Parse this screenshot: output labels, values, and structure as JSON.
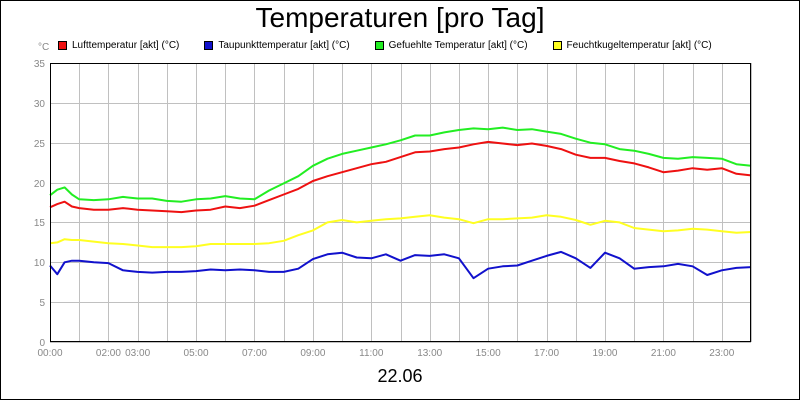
{
  "chart_data": {
    "type": "line",
    "title": "Temperaturen [pro Tag]",
    "ylabel": "°C",
    "xlabel": "22.06",
    "ylim": [
      0,
      35
    ],
    "yticks": [
      0,
      5,
      10,
      15,
      20,
      25,
      30,
      35
    ],
    "xlim": [
      0,
      24
    ],
    "xticks": [
      {
        "h": 0,
        "label": "00:00"
      },
      {
        "h": 2,
        "label": "02:00"
      },
      {
        "h": 3,
        "label": "03:00"
      },
      {
        "h": 5,
        "label": "05:00"
      },
      {
        "h": 7,
        "label": "07:00"
      },
      {
        "h": 9,
        "label": "09:00"
      },
      {
        "h": 11,
        "label": "11:00"
      },
      {
        "h": 13,
        "label": "13:00"
      },
      {
        "h": 15,
        "label": "15:00"
      },
      {
        "h": 17,
        "label": "17:00"
      },
      {
        "h": 19,
        "label": "19:00"
      },
      {
        "h": 21,
        "label": "21:00"
      },
      {
        "h": 23,
        "label": "23:00"
      }
    ],
    "grid": true,
    "legend_position": "top",
    "x": [
      0,
      0.25,
      0.5,
      0.75,
      1,
      1.5,
      2,
      2.5,
      3,
      3.5,
      4,
      4.5,
      5,
      5.5,
      6,
      6.5,
      7,
      7.5,
      8,
      8.5,
      9,
      9.5,
      10,
      10.5,
      11,
      11.5,
      12,
      12.5,
      13,
      13.5,
      14,
      14.5,
      15,
      15.5,
      16,
      16.5,
      17,
      17.5,
      18,
      18.5,
      19,
      19.5,
      20,
      20.5,
      21,
      21.5,
      22,
      22.5,
      23,
      23.5,
      24
    ],
    "series": [
      {
        "name": "Lufttemperatur [akt] (°C)",
        "color": "#ee1111",
        "values": [
          16.9,
          17.3,
          17.6,
          17.0,
          16.8,
          16.6,
          16.6,
          16.8,
          16.6,
          16.5,
          16.4,
          16.3,
          16.5,
          16.6,
          17.0,
          16.8,
          17.1,
          17.8,
          18.5,
          19.2,
          20.2,
          20.8,
          21.3,
          21.8,
          22.3,
          22.6,
          23.2,
          23.8,
          23.9,
          24.2,
          24.4,
          24.8,
          25.1,
          24.9,
          24.7,
          24.9,
          24.6,
          24.2,
          23.5,
          23.1,
          23.1,
          22.7,
          22.4,
          21.9,
          21.3,
          21.5,
          21.8,
          21.6,
          21.8,
          21.1,
          20.9
        ]
      },
      {
        "name": "Taupunkttemperatur [akt] (°C)",
        "color": "#1111cc",
        "values": [
          9.6,
          8.5,
          10.0,
          10.2,
          10.2,
          10.0,
          9.9,
          9.0,
          8.8,
          8.7,
          8.8,
          8.8,
          8.9,
          9.1,
          9.0,
          9.1,
          9.0,
          8.8,
          8.8,
          9.2,
          10.4,
          11.0,
          11.2,
          10.6,
          10.5,
          11.0,
          10.2,
          10.9,
          10.8,
          11.0,
          10.5,
          8.0,
          9.2,
          9.5,
          9.6,
          10.2,
          10.8,
          11.3,
          10.5,
          9.3,
          11.2,
          10.5,
          9.2,
          9.4,
          9.5,
          9.8,
          9.5,
          8.4,
          9.0,
          9.3,
          9.4
        ]
      },
      {
        "name": "Gefuehlte Temperatur [akt] (°C)",
        "color": "#22ee22",
        "values": [
          18.4,
          19.1,
          19.4,
          18.5,
          17.9,
          17.8,
          17.9,
          18.2,
          18.0,
          18.0,
          17.7,
          17.6,
          17.9,
          18.0,
          18.3,
          18.0,
          17.9,
          19.0,
          19.9,
          20.8,
          22.1,
          23.0,
          23.6,
          24.0,
          24.4,
          24.8,
          25.3,
          25.9,
          25.9,
          26.3,
          26.6,
          26.8,
          26.7,
          26.9,
          26.6,
          26.7,
          26.4,
          26.1,
          25.5,
          25.0,
          24.8,
          24.2,
          24.0,
          23.6,
          23.1,
          23.0,
          23.2,
          23.1,
          23.0,
          22.3,
          22.1
        ]
      },
      {
        "name": "Feuchtkugeltemperatur [akt] (°C)",
        "color": "#ffff22",
        "values": [
          12.4,
          12.5,
          12.9,
          12.8,
          12.8,
          12.6,
          12.4,
          12.3,
          12.1,
          11.9,
          11.9,
          11.9,
          12.0,
          12.3,
          12.3,
          12.3,
          12.3,
          12.4,
          12.7,
          13.4,
          14.0,
          15.0,
          15.3,
          15.0,
          15.2,
          15.4,
          15.5,
          15.7,
          15.9,
          15.6,
          15.4,
          14.9,
          15.4,
          15.4,
          15.5,
          15.6,
          15.9,
          15.7,
          15.3,
          14.7,
          15.2,
          15.0,
          14.3,
          14.1,
          13.9,
          14.0,
          14.2,
          14.1,
          13.9,
          13.7,
          13.8
        ]
      }
    ]
  }
}
